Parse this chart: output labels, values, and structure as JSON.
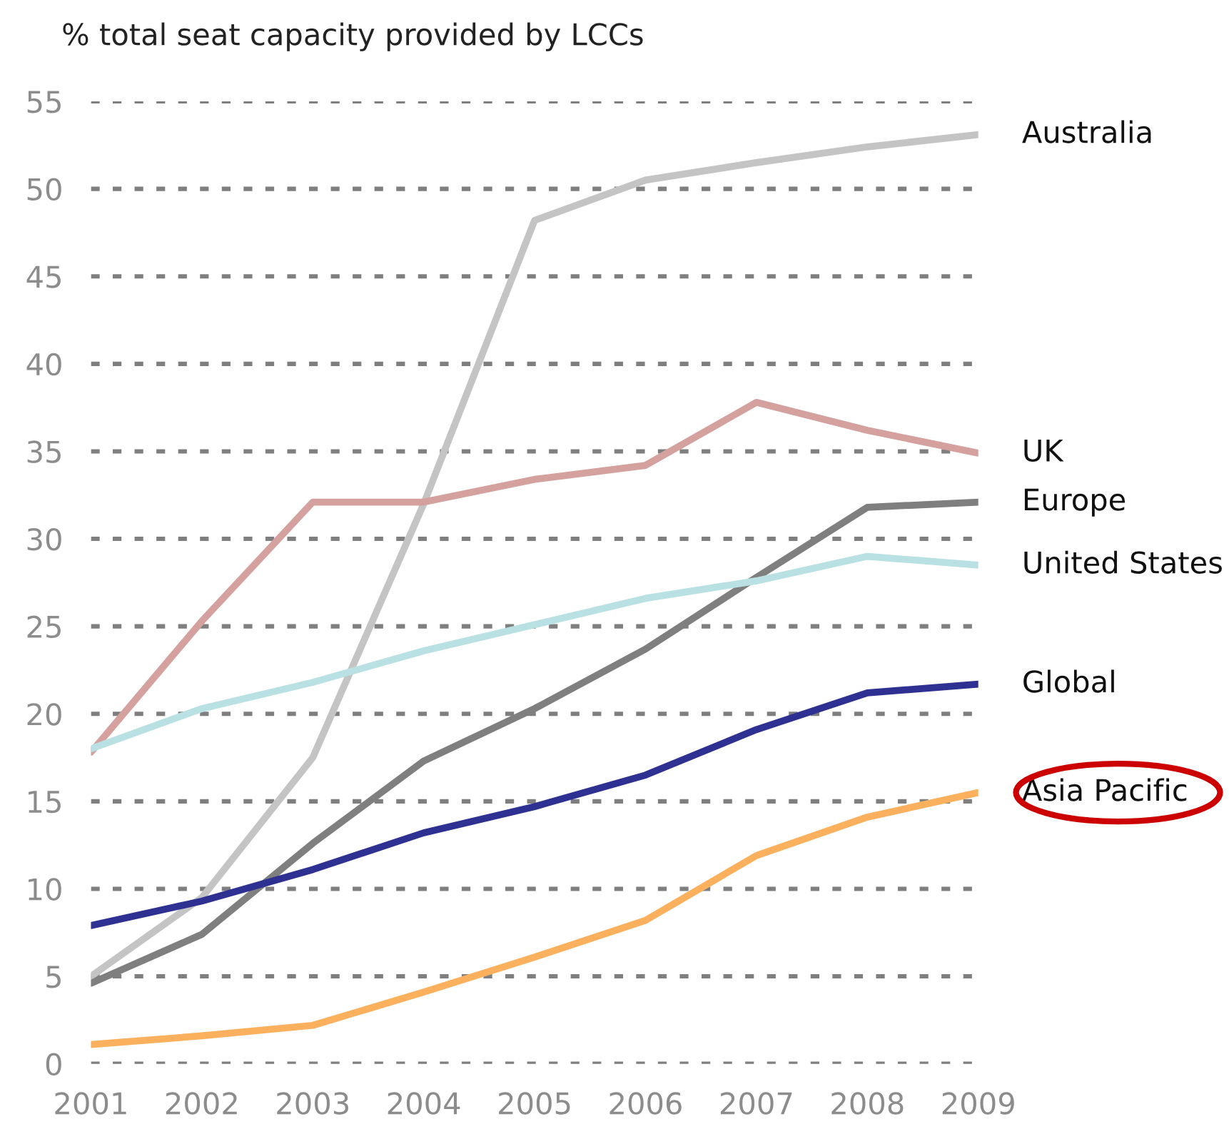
{
  "chart_data": {
    "type": "line",
    "title": "% total seat capacity provided by LCCs",
    "x": [
      2001,
      2002,
      2003,
      2004,
      2005,
      2006,
      2007,
      2008,
      2009
    ],
    "series": [
      {
        "name": "Australia",
        "color": "#c4c4c4",
        "values": [
          5,
          9.5,
          17.5,
          32,
          48.2,
          50.5,
          51.5,
          52.4,
          53.1
        ]
      },
      {
        "name": "UK",
        "color": "#d4a19e",
        "values": [
          17.8,
          25.3,
          32.1,
          32.1,
          33.4,
          34.2,
          37.8,
          36.2,
          34.9
        ]
      },
      {
        "name": "Europe",
        "color": "#7f7f7f",
        "values": [
          4.6,
          7.4,
          12.6,
          17.3,
          20.3,
          23.7,
          27.8,
          31.8,
          32.1
        ]
      },
      {
        "name": "United States",
        "color": "#b9e1e3",
        "values": [
          18,
          20.3,
          21.8,
          23.6,
          25.1,
          26.6,
          27.6,
          29.0,
          28.5
        ]
      },
      {
        "name": "Global",
        "color": "#2e3192",
        "values": [
          7.9,
          9.3,
          11.1,
          13.2,
          14.7,
          16.5,
          19.1,
          21.2,
          21.7
        ]
      },
      {
        "name": "Asia Pacific",
        "color": "#fbb05e",
        "values": [
          1.1,
          1.6,
          2.2,
          4.1,
          6.1,
          8.2,
          11.9,
          14.1,
          15.5
        ]
      }
    ],
    "xlim": [
      2001,
      2009
    ],
    "xticks": [
      2001,
      2002,
      2003,
      2004,
      2005,
      2006,
      2007,
      2008,
      2009
    ],
    "ylim": [
      0,
      55
    ],
    "yticks": [
      0,
      5,
      10,
      15,
      20,
      25,
      30,
      35,
      40,
      45,
      50,
      55
    ],
    "grid": "y",
    "legend": false,
    "marker": "none",
    "line_style": "solid"
  }
}
